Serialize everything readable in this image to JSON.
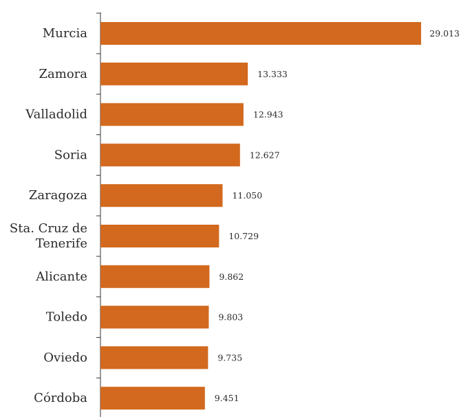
{
  "chart_data": {
    "type": "bar",
    "orientation": "horizontal",
    "categories": [
      [
        "Murcia"
      ],
      [
        "Zamora"
      ],
      [
        "Valladolid"
      ],
      [
        "Soria"
      ],
      [
        "Zaragoza"
      ],
      [
        "Sta. Cruz de",
        "Tenerife"
      ],
      [
        "Alicante"
      ],
      [
        "Toledo"
      ],
      [
        "Oviedo"
      ],
      [
        "Córdoba"
      ]
    ],
    "values": [
      29013,
      13333,
      12943,
      12627,
      11050,
      10729,
      9862,
      9803,
      9735,
      9451
    ],
    "value_labels": [
      "29.013",
      "13.333",
      "12.943",
      "12.627",
      "11.050",
      "10.729",
      "9.862",
      "9.803",
      "9.735",
      "9.451"
    ],
    "title": "",
    "xlabel": "",
    "ylabel": "",
    "xlim": [
      0,
      29013
    ],
    "grid": false,
    "legend": "none",
    "bar_color": "#d2691e",
    "text_color": "#2a2a2a"
  }
}
